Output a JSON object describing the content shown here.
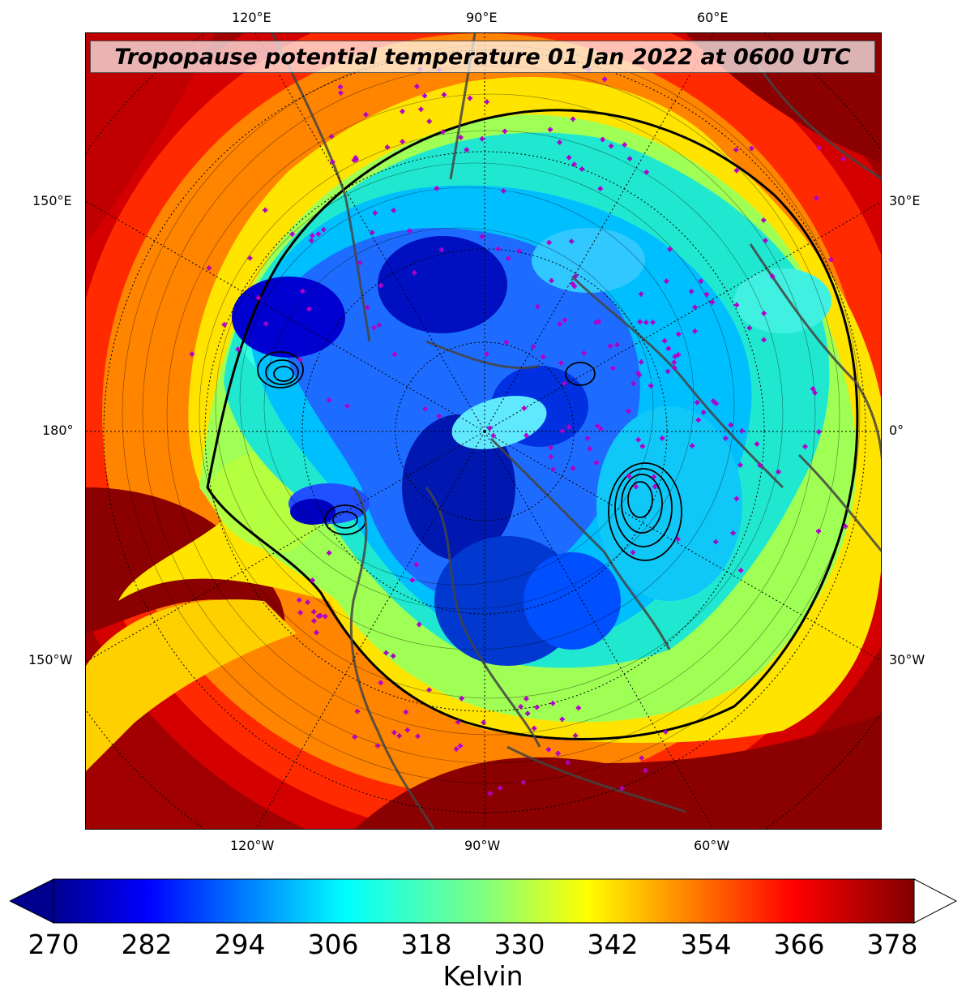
{
  "title": "Tropopause potential temperature 01 Jan 2022 at 0600 UTC",
  "top_lon_labels": [
    "120°E",
    "90°E",
    "60°E"
  ],
  "bottom_lon_labels": [
    "120°W",
    "90°W",
    "60°W"
  ],
  "left_lon_labels": [
    "150°E",
    "180°",
    "150°W"
  ],
  "right_lon_labels": [
    "30°E",
    "0°",
    "30°W"
  ],
  "colorbar": {
    "ticks": [
      "270",
      "282",
      "294",
      "306",
      "318",
      "330",
      "342",
      "354",
      "366",
      "378"
    ],
    "label": "Kelvin",
    "range": [
      270,
      381
    ],
    "colormap": "jet",
    "extend": "both"
  },
  "colors": {
    "warm_background": "#8b0000",
    "coastline": "#444444",
    "station_marker": "#b000c8",
    "contour": "#000000"
  },
  "icons": {
    "station": "plus-marker-icon"
  }
}
